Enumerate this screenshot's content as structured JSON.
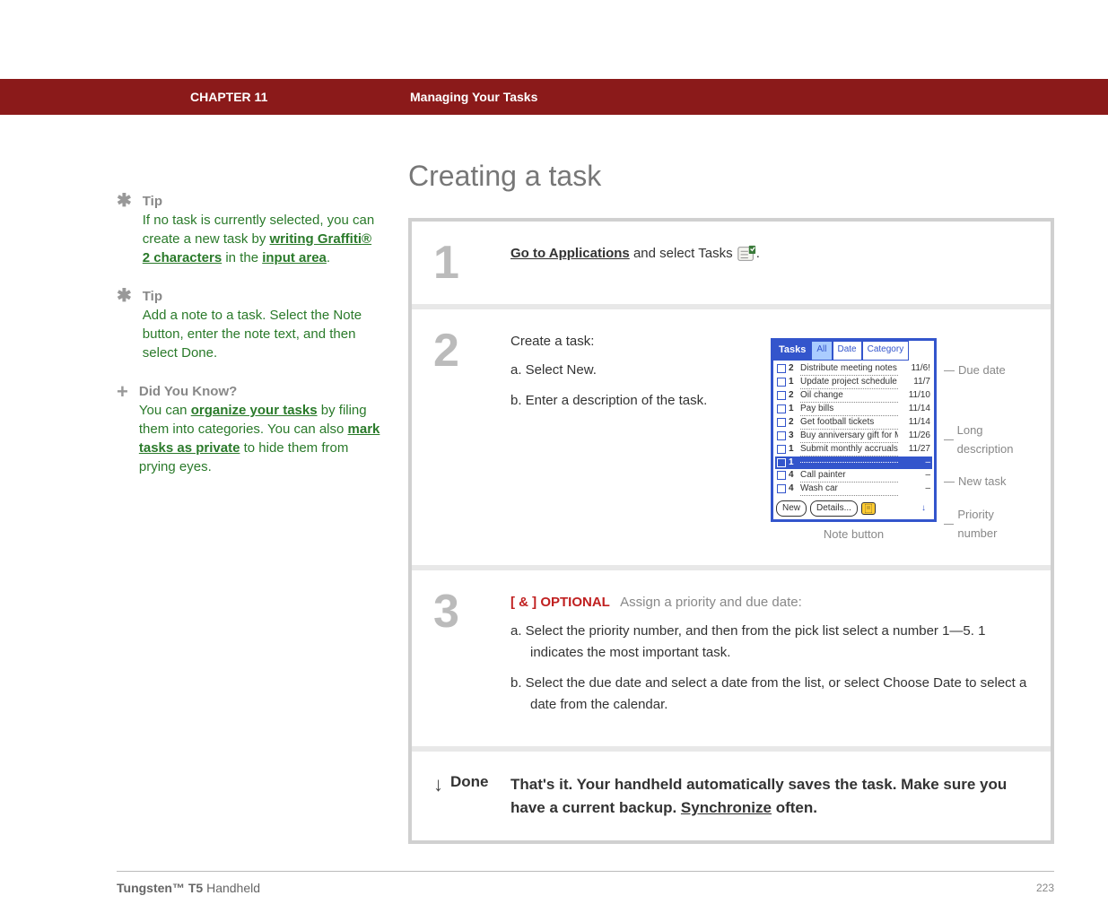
{
  "header": {
    "chapter": "CHAPTER 11",
    "section": "Managing Your Tasks"
  },
  "page_title": "Creating a task",
  "tips": [
    {
      "icon": "✱",
      "heading": "Tip",
      "segments": [
        {
          "t": "If no task is currently selected, you can create a new task by "
        },
        {
          "t": "writing Graffiti® 2 characters",
          "link": true
        },
        {
          "t": " in the "
        },
        {
          "t": "input area",
          "link": true
        },
        {
          "t": "."
        }
      ]
    },
    {
      "icon": "✱",
      "heading": "Tip",
      "segments": [
        {
          "t": "Add a note to a task. Select the Note button, enter the note text, and then select Done."
        }
      ]
    },
    {
      "icon": "+",
      "heading": "Did You Know?",
      "segments": [
        {
          "t": "You can "
        },
        {
          "t": "organize your tasks",
          "link": true
        },
        {
          "t": " by filing them into categories. You can also "
        },
        {
          "t": "mark tasks as private",
          "link": true
        },
        {
          "t": " to hide them from prying eyes."
        }
      ]
    }
  ],
  "step1": {
    "num": "1",
    "link": "Go to Applications",
    "after": " and select Tasks ",
    "end": "."
  },
  "step2": {
    "num": "2",
    "intro": "Create a task:",
    "a": "a.  Select New.",
    "b": "b.  Enter a description of the task."
  },
  "step3": {
    "num": "3",
    "optional": "[ & ]  OPTIONAL",
    "optional_text": "Assign a priority and due date:",
    "a": "a.  Select the priority number, and then from the pick list select a number 1—5. 1 indicates the most important task.",
    "b": "b.  Select the due date and select a date from the list, or select Choose Date to select a date from the calendar."
  },
  "done": {
    "label": "Done",
    "text_before": "That's it. Your handheld automatically saves the task. Make sure you have a current backup. ",
    "link": "Synchronize",
    "text_after": " often."
  },
  "palm": {
    "title": "Tasks",
    "tabs": [
      "All",
      "Date",
      "Category"
    ],
    "rows": [
      {
        "pri": "2",
        "desc": "Distribute meeting notes",
        "date": "11/6!"
      },
      {
        "pri": "1",
        "desc": "Update project schedule",
        "date": "11/7"
      },
      {
        "pri": "2",
        "desc": "Oil change",
        "date": "11/10"
      },
      {
        "pri": "1",
        "desc": "Pay bills",
        "date": "11/14"
      },
      {
        "pri": "2",
        "desc": "Get football tickets",
        "date": "11/14"
      },
      {
        "pri": "3",
        "desc": "Buy anniversary gift for Midyne & Greg",
        "date": "11/26"
      },
      {
        "pri": "1",
        "desc": "Submit monthly accruals",
        "date": "11/27"
      },
      {
        "pri": "1",
        "desc": "",
        "date": "–",
        "hl": true
      },
      {
        "pri": "4",
        "desc": "Call painter",
        "date": "–"
      },
      {
        "pri": "4",
        "desc": "Wash car",
        "date": "–"
      }
    ],
    "buttons": {
      "new": "New",
      "details": "Details..."
    },
    "callouts": {
      "due": "Due date",
      "long": "Long description",
      "new": "New task",
      "pri": "Priority number",
      "note": "Note button"
    }
  },
  "footer": {
    "product_bold": "Tungsten™ T5",
    "product_rest": " Handheld",
    "page": "223"
  }
}
